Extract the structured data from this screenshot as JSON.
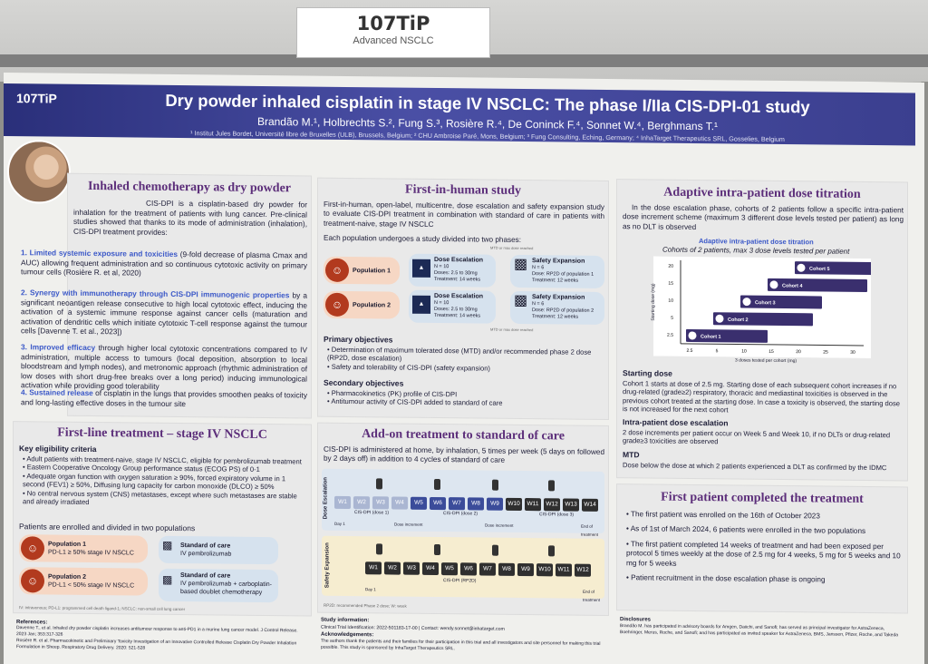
{
  "sign": {
    "code": "107TiP",
    "subtitle": "Advanced NSCLC"
  },
  "header": {
    "code": "107TiP",
    "title": "Dry powder inhaled cisplatin in stage IV NSCLC: The phase I/IIa CIS-DPI-01 study",
    "authors": "Brandão M.¹, Holbrechts S.², Fung S.³, Rosière R.⁴, De Coninck F.⁴, Sonnet W.⁴, Berghmans T.¹",
    "affiliations": "¹ Institut Jules Bordet, Université libre de Bruxelles (ULB), Brussels, Belgium; ² CHU Ambroise Paré, Mons, Belgium; ³ Fung Consulting, Eching, Germany; ⁴ InhaTarget Therapeutics SRL, Gosselies, Belgium"
  },
  "inhaled": {
    "title": "Inhaled chemotherapy as dry powder",
    "intro": "CIS-DPI is a cisplatin-based dry powder for inhalation for the treatment of patients with lung cancer. Pre-clinical studies showed that thanks to its mode of administration (inhalation), CIS-DPI treatment provides:",
    "p1_num": "1.",
    "p1_head": "Limited systemic exposure and toxicities",
    "p1_body": " (9-fold decrease of plasma Cmax and AUC) allowing frequent administration and so continuous cytotoxic activity on primary tumour cells (Rosière R. et al, 2020)",
    "p2_num": "2.",
    "p2_head": "Synergy with immunotherapy through CIS-DPI immunogenic properties",
    "p2_body": " by a significant neoantigen release consecutive to high local cytotoxic effect, inducing the activation of a systemic immune response against cancer cells (maturation and activation of dendritic cells which initiate cytotoxic T-cell response against the tumour cells [Davenne T. et al., 2023])",
    "p3_num": "3.",
    "p3_head": "Improved efficacy",
    "p3_body": " through higher local cytotoxic concentrations compared to IV administration, multiple access to tumours (local deposition, absorption to local bloodstream and lymph nodes), and metronomic approach (rhythmic administration of low doses with short drug-free breaks over a long period) inducing immunological activation while providing good tolerability",
    "p4_num": "4.",
    "p4_head": "Sustained release",
    "p4_body": " of cisplatin in the lungs that provides smoothen peaks of toxicity and long-lasting effective doses in the tumour site"
  },
  "first_line": {
    "title": "First-line treatment – stage IV NSCLC",
    "crit_title": "Key eligibility criteria",
    "c1": "Adult patients with treatment-naive, stage IV NSCLC, eligible for pembrolizumab treatment",
    "c2": "Eastern Cooperative Oncology Group performance status (ECOG PS) of 0-1",
    "c3": "Adequate organ function with oxygen saturation ≥ 90%, forced expiratory volume in 1 second (FEV1) ≥ 50%, Diffusing lung capacity for carbon monoxide (DLCO) ≥ 50%",
    "c4": "No central nervous system (CNS) metastases, except where such metastases are stable and already irradiated",
    "enrol": "Patients are enrolled and divided in two populations",
    "pop1": "Population 1",
    "pop1_sub": "PD-L1 ≥ 50% stage IV NSCLC",
    "pop2": "Population 2",
    "pop2_sub": "PD-L1 < 50% stage IV NSCLC",
    "soc": "Standard of care",
    "soc1": "IV pembrolizumab",
    "soc2": "IV pembrolizumab + carboplatin-based doublet chemotherapy",
    "foot": "IV: intravenous; PD-L1: programmed cell death ligand-1; NSCLC: non-small cell lung cancer"
  },
  "refs": {
    "title": "References:",
    "r1": "Davenne T., et al. Inhaled dry powder cisplatin increases antitumour response to anti-PD1 in a murine lung cancer model. J Control Release. 2023 Jan; 353:317-326",
    "r2": "Rosière R. et al. Pharmacokinetic and Preliminary Toxicity Investigation of an Innovative Controlled Release Cisplatin Dry Powder Inhalation Formulation in Sheep. Respiratory Drug Delivery. 2020: 521-528"
  },
  "fih": {
    "title": "First-in-human study",
    "intro": "First-in-human, open-label, multicentre, dose escalation and safety expansion study to evaluate CIS-DPI treatment in combination with standard of care in patients with treatment-naive, stage IV NSCLC",
    "phases": "Each population undergoes a study divided into two phases:",
    "pop1": "Population 1",
    "pop2": "Population 2",
    "de": "Dose Escalation",
    "de_n": "N = 10",
    "de_dose": "Doses: 2.5 to 30mg",
    "de_tr": "Treatment: 14 weeks",
    "se": "Safety Expansion",
    "se_n": "N = 6",
    "se_dose1": "Dose: RP2D of population 1",
    "se_dose2": "Dose: RP2D of population 2",
    "se_tr": "Treatment: 12 weeks",
    "mtd": "MTD or max dose reached",
    "prim": "Primary objectives",
    "prim1": "Determination of maximum tolerated dose (MTD) and/or recommended phase 2 dose (RP2D, dose escalation)",
    "prim2": "Safety and tolerability of CIS-DPI (safety expansion)",
    "sec": "Secondary objectives",
    "sec1": "Pharmacokinetics (PK) profile of CIS-DPI",
    "sec2": "Antitumour activity of CIS-DPI added to standard of care"
  },
  "addon": {
    "title": "Add-on treatment to standard of care",
    "text": "CIS-DPI is administered at home, by inhalation, 5 times per week (5 days on followed by 2 days off) in addition to 4 cycles of standard of care",
    "esc_label": "Dose Escalation",
    "exp_label": "Safety Expansion",
    "weeks_esc": [
      "W1",
      "W2",
      "W3",
      "W4",
      "W5",
      "W6",
      "W7",
      "W8",
      "W9",
      "W10",
      "W11",
      "W12",
      "W13",
      "W14"
    ],
    "weeks_exp": [
      "W1",
      "W2",
      "W3",
      "W4",
      "W5",
      "W6",
      "W7",
      "W8",
      "W9",
      "W10",
      "W11",
      "W12"
    ],
    "dose1": "CIS-DPI (dose 1)",
    "dose2": "CIS-DPI (dose 2)",
    "dose3": "CIS-DPI (dose 3)",
    "rp2d": "CIS-DPI (RP2D)",
    "day1": "Day 1",
    "dose_inc": "Dose increment",
    "end": "End of treatment",
    "foot": "RP2D: recommended Phase 2 dose; W: week",
    "info_title": "Study information:",
    "info": "Clinical Trial Identification: 2022-501183-17-00 | Contact: wendy.sonnet@inhatarget.com",
    "ack_title": "Acknowledgements:",
    "ack": "The authors thank the patients and their families for their participation in this trial and all investigators and site personnel for making this trial possible. This study is sponsored by InhaTarget Therapeutics SRL."
  },
  "adaptive": {
    "title": "Adaptive intra-patient dose titration",
    "intro": "In the dose escalation phase, cohorts of 2 patients follow a specific intra-patient dose increment scheme (maximum 3 different dose levels tested per patient) as long as no DLT is observed",
    "chart_title": "Adaptive intra-patient dose titration",
    "chart_sub": "Cohorts of 2 patients, max 3 dose levels tested per patient",
    "ylabel": "Starting dose (mg)",
    "xlabel": "3 doses tested per cohort (mg)",
    "yticks": [
      "20",
      "15",
      "10",
      "5",
      "2.5"
    ],
    "xticks": [
      "2.5",
      "5",
      "10",
      "15",
      "20",
      "25",
      "30"
    ],
    "cohorts": [
      "Cohort 1",
      "Cohort 2",
      "Cohort 3",
      "Cohort 4",
      "Cohort 5"
    ],
    "sd_title": "Starting dose",
    "sd": "Cohort 1 starts at dose of 2.5 mg. Starting dose of each subsequent cohort increases if no drug-related (grade≥2) respiratory, thoracic and mediastinal toxicities is observed in the previous cohort treated at the starting dose. In case a toxicity is observed, the starting dose is not increased for the next cohort",
    "ip_title": "Intra-patient dose escalation",
    "ip": "2 dose increments per patient occur on Week 5 and Week 10, if no DLTs or drug-related grade≥3 toxicities are observed",
    "mtd_title": "MTD",
    "mtd": "Dose below the dose at which 2 patients experienced a DLT as confirmed by the IDMC"
  },
  "chart_data": {
    "type": "bar",
    "title": "Adaptive intra-patient dose titration",
    "subtitle": "Cohorts of 2 patients, max 3 dose levels tested per patient",
    "ylabel": "Starting dose (mg)",
    "xlabel": "3 doses tested per cohort (mg)",
    "categories": [
      "Cohort 1",
      "Cohort 2",
      "Cohort 3",
      "Cohort 4",
      "Cohort 5"
    ],
    "starting_dose": [
      2.5,
      5,
      10,
      15,
      20
    ],
    "xlim": [
      2.5,
      30
    ]
  },
  "fpc": {
    "title": "First patient completed the treatment",
    "i1": "The first patient was enrolled on the 16th of October 2023",
    "i2": "As of 1st of March 2024, 6 patients were enrolled in the two populations",
    "i3": "The first patient completed 14 weeks of treatment and had been exposed per protocol 5 times weekly at the dose of 2.5 mg for 4 weeks, 5 mg for 5 weeks and 10 mg for 5 weeks",
    "i4": "Patient recruitment in the dose escalation phase is ongoing"
  },
  "disc": {
    "title": "Disclosures",
    "text": "Brandão M. has participated in advisory boards for Amgen, Daiichi, and Sanofi; has served as principal investigator for AstraZeneca, Boehringer, Merus, Roche, and Sanofi; and has participated as invited speaker for AstraZeneca, BMS, Janssen, Pfizer, Roche, and Takeda"
  }
}
